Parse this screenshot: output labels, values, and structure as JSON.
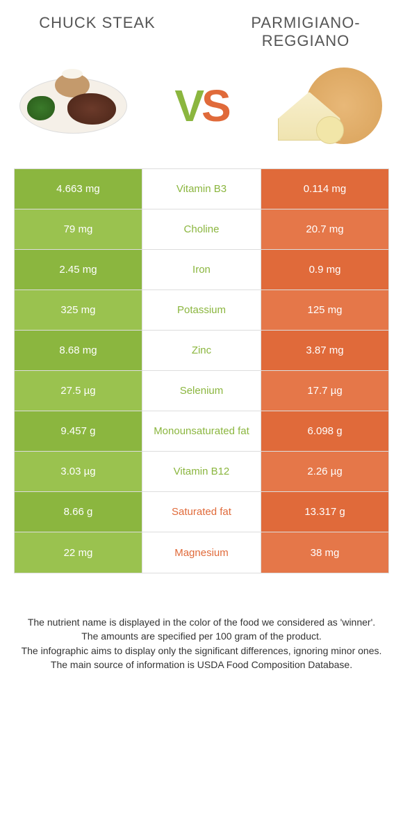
{
  "colors": {
    "green": "#8bb63f",
    "orange": "#e06a3a",
    "green_alt": "#9ac24f",
    "orange_alt": "#e57749"
  },
  "header": {
    "left_title": "Chuck steak",
    "right_title": "Parmigiano-Reggiano"
  },
  "vs": {
    "v": "V",
    "s": "S"
  },
  "rows": [
    {
      "left": "4.663 mg",
      "name": "Vitamin B3",
      "right": "0.114 mg",
      "winner": "left"
    },
    {
      "left": "79 mg",
      "name": "Choline",
      "right": "20.7 mg",
      "winner": "left"
    },
    {
      "left": "2.45 mg",
      "name": "Iron",
      "right": "0.9 mg",
      "winner": "left"
    },
    {
      "left": "325 mg",
      "name": "Potassium",
      "right": "125 mg",
      "winner": "left"
    },
    {
      "left": "8.68 mg",
      "name": "Zinc",
      "right": "3.87 mg",
      "winner": "left"
    },
    {
      "left": "27.5 µg",
      "name": "Selenium",
      "right": "17.7 µg",
      "winner": "left"
    },
    {
      "left": "9.457 g",
      "name": "Monounsaturated fat",
      "right": "6.098 g",
      "winner": "left"
    },
    {
      "left": "3.03 µg",
      "name": "Vitamin B12",
      "right": "2.26 µg",
      "winner": "left"
    },
    {
      "left": "8.66 g",
      "name": "Saturated fat",
      "right": "13.317 g",
      "winner": "right"
    },
    {
      "left": "22 mg",
      "name": "Magnesium",
      "right": "38 mg",
      "winner": "right"
    }
  ],
  "footnotes": [
    "The nutrient name is displayed in the color of the food we considered as 'winner'.",
    "The amounts are specified per 100 gram of the product.",
    "The infographic aims to display only the significant differences, ignoring minor ones.",
    "The main source of information is USDA Food Composition Database."
  ]
}
